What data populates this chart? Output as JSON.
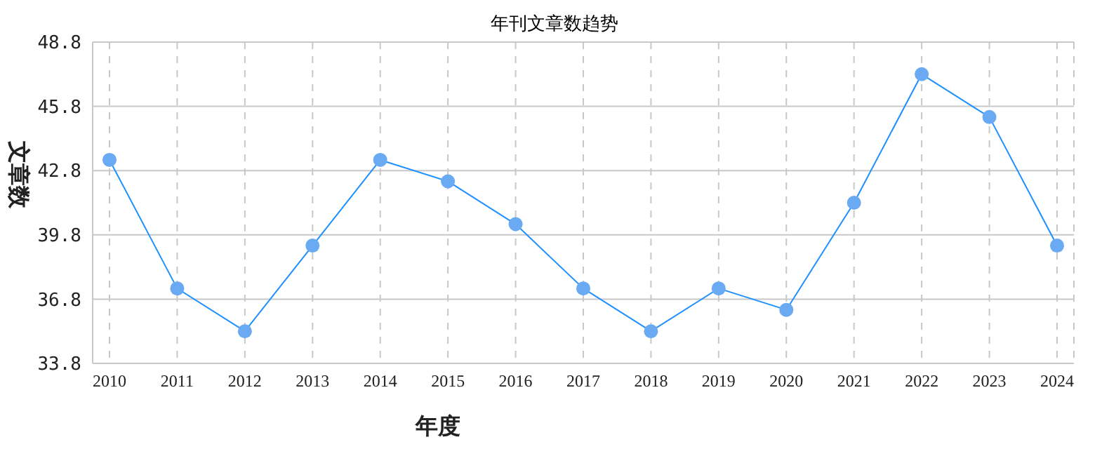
{
  "chart_data": {
    "type": "line",
    "title": "年刊文章数趋势",
    "xlabel": "年度",
    "ylabel": "文章数",
    "categories": [
      "2010",
      "2011",
      "2012",
      "2013",
      "2014",
      "2015",
      "2016",
      "2017",
      "2018",
      "2019",
      "2020",
      "2021",
      "2022",
      "2023",
      "2024"
    ],
    "series": [
      {
        "color": "#1e90ff",
        "values": [
          43.3,
          37.3,
          35.3,
          39.3,
          43.3,
          42.3,
          40.3,
          37.3,
          35.3,
          37.3,
          36.3,
          41.3,
          47.3,
          45.3,
          39.3
        ]
      }
    ],
    "ylim": [
      33.8,
      48.8
    ],
    "yticks": [
      33.8,
      36.8,
      39.8,
      42.8,
      45.8,
      48.8
    ],
    "grid": true,
    "marker": "circle",
    "line_style": "solid"
  }
}
